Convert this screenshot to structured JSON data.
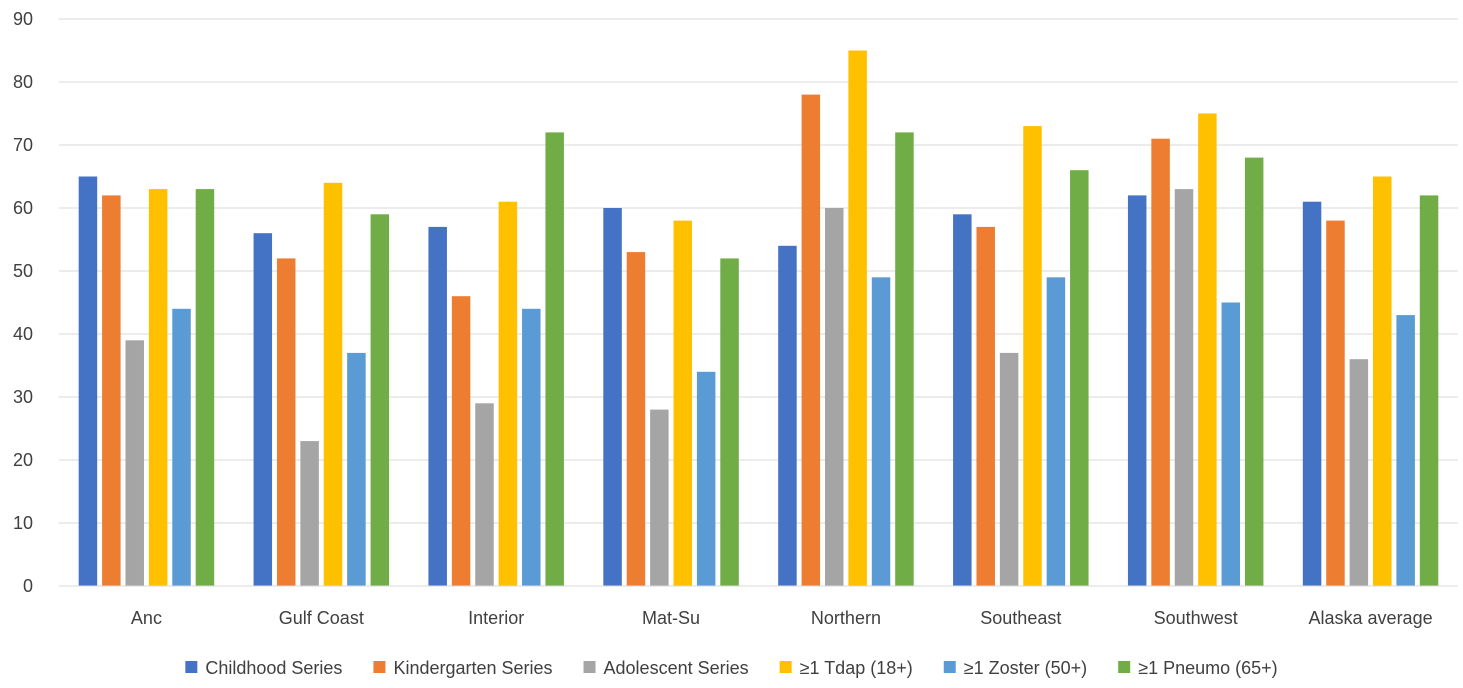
{
  "chart_data": {
    "type": "bar",
    "title": "",
    "xlabel": "",
    "ylabel": "",
    "ylim": [
      0,
      90
    ],
    "yticks": [
      0,
      10,
      20,
      30,
      40,
      50,
      60,
      70,
      80,
      90
    ],
    "grid": true,
    "legend_position": "bottom",
    "categories": [
      "Anc",
      "Gulf Coast",
      "Interior",
      "Mat-Su",
      "Northern",
      "Southeast",
      "Southwest",
      "Alaska average"
    ],
    "series": [
      {
        "name": "Childhood Series",
        "color": "#4472c4",
        "values": [
          65,
          56,
          57,
          60,
          54,
          59,
          62,
          61
        ]
      },
      {
        "name": "Kindergarten Series",
        "color": "#ed7d31",
        "values": [
          62,
          52,
          46,
          53,
          78,
          57,
          71,
          58
        ]
      },
      {
        "name": "Adolescent Series",
        "color": "#a5a5a5",
        "values": [
          39,
          23,
          29,
          28,
          60,
          37,
          63,
          36
        ]
      },
      {
        "name": "≥1 Tdap (18+)",
        "color": "#ffc000",
        "values": [
          63,
          64,
          61,
          58,
          85,
          73,
          75,
          65
        ]
      },
      {
        "name": "≥1 Zoster (50+)",
        "color": "#5b9bd5",
        "values": [
          44,
          37,
          44,
          34,
          49,
          49,
          45,
          43
        ]
      },
      {
        "name": "≥1 Pneumo (65+)",
        "color": "#70ad47",
        "values": [
          63,
          59,
          72,
          52,
          72,
          66,
          68,
          62
        ]
      }
    ]
  }
}
